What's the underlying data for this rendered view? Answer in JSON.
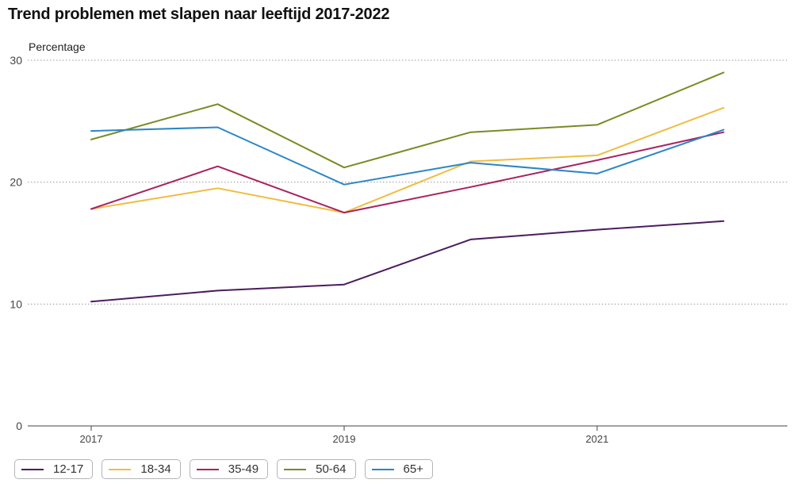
{
  "chart_data": {
    "type": "line",
    "title": "Trend problemen met slapen naar leeftijd 2017-2022",
    "ylabel": "Percentage",
    "xlabel": "",
    "x": [
      2017,
      2018,
      2019,
      2020,
      2021,
      2022
    ],
    "xticks": [
      2017,
      2019,
      2021
    ],
    "xlim": [
      2016.5,
      2022.5
    ],
    "ylim": [
      0,
      30
    ],
    "yticks": [
      0,
      10,
      20,
      30
    ],
    "grid": true,
    "legend_position": "bottom",
    "series": [
      {
        "name": "12-17",
        "color": "#4b1c5e",
        "values": [
          10.2,
          11.1,
          11.6,
          15.3,
          16.1,
          16.8
        ]
      },
      {
        "name": "18-34",
        "color": "#f0bc41",
        "values": [
          17.8,
          19.5,
          17.5,
          21.7,
          22.2,
          26.1
        ]
      },
      {
        "name": "35-49",
        "color": "#a8235f",
        "values": [
          17.8,
          21.3,
          17.5,
          19.6,
          21.8,
          24.1
        ]
      },
      {
        "name": "50-64",
        "color": "#7a8b23",
        "values": [
          23.5,
          26.4,
          21.2,
          24.1,
          24.7,
          29.0
        ]
      },
      {
        "name": "65+",
        "color": "#2b86c5",
        "values": [
          24.2,
          24.5,
          19.8,
          21.6,
          20.7,
          24.3
        ]
      }
    ]
  }
}
